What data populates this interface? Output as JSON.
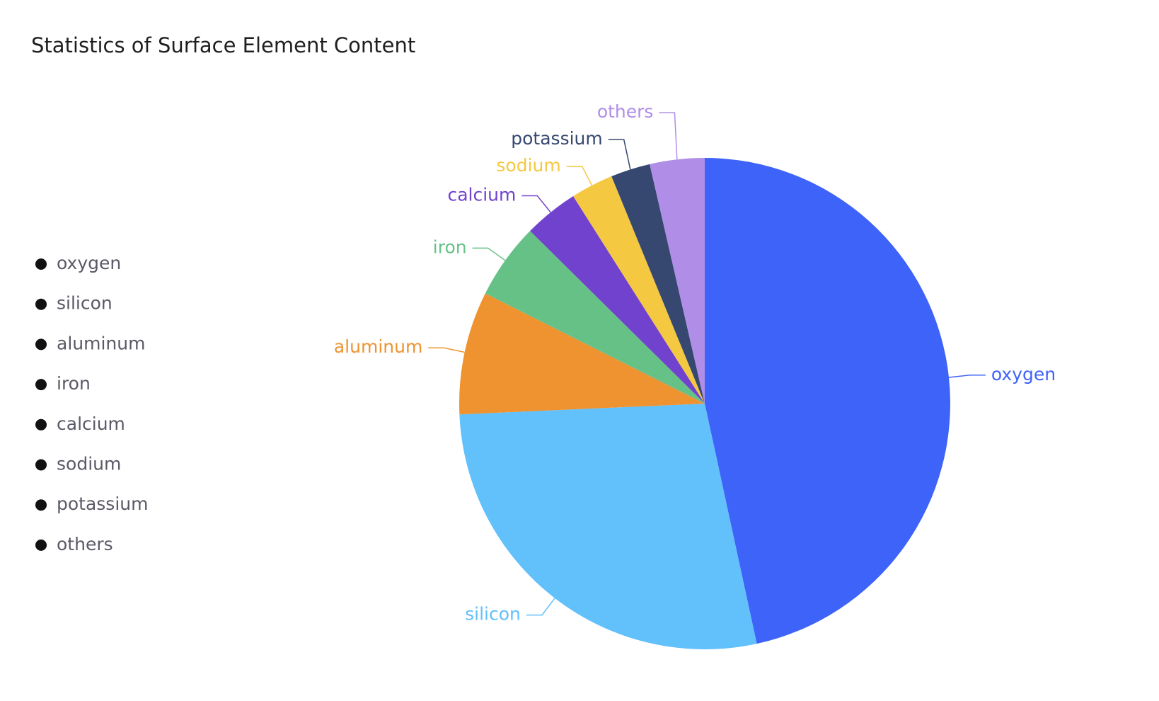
{
  "chart_data": {
    "type": "pie",
    "title": "Statistics of Surface Element Content",
    "categories": [
      "oxygen",
      "silicon",
      "aluminum",
      "iron",
      "calcium",
      "sodium",
      "potassium",
      "others"
    ],
    "values": [
      46.6,
      27.7,
      8.1,
      5.0,
      3.6,
      2.8,
      2.6,
      3.6
    ],
    "colors": [
      "#3e63f8",
      "#62c0fb",
      "#ee9330",
      "#66c187",
      "#7142cd",
      "#f5c842",
      "#364870",
      "#b08ee7"
    ],
    "legend": "left"
  }
}
